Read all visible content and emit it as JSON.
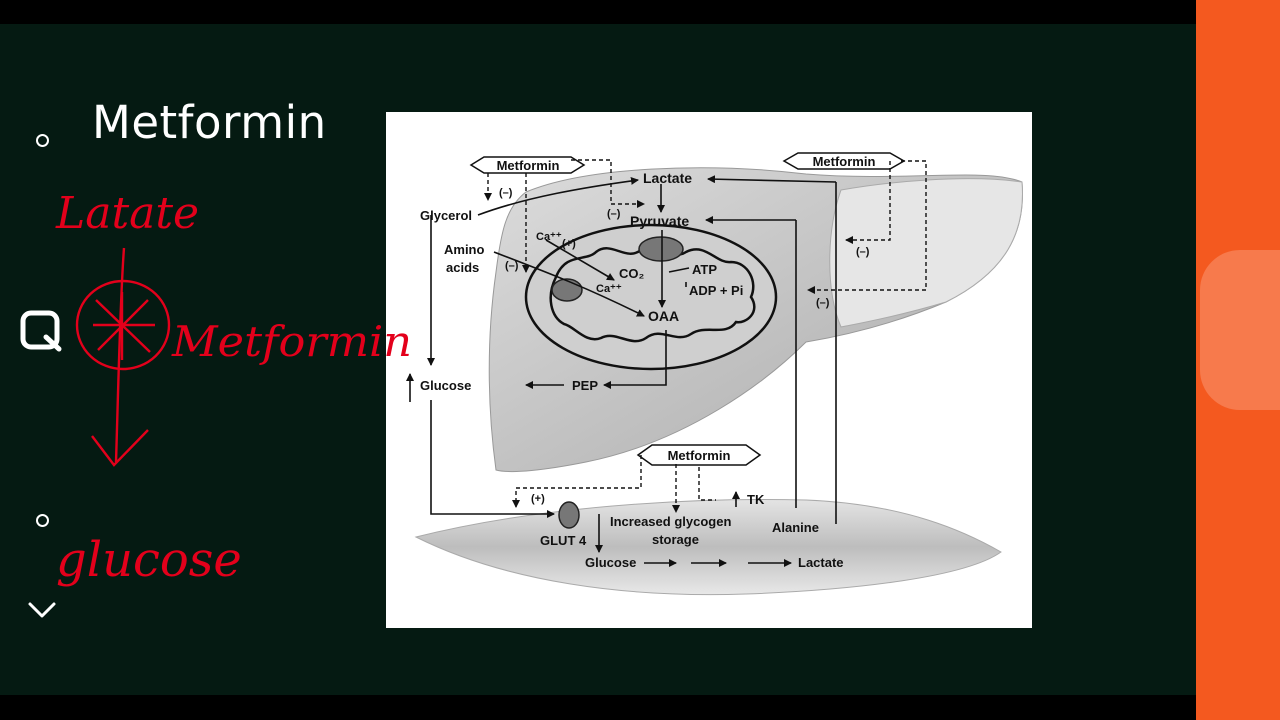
{
  "slide": {
    "title": "Metformin"
  },
  "handwriting": {
    "lactate": "Latate",
    "metformin": "Metformin",
    "glucose": "glucose"
  },
  "diagram": {
    "metformin_box_1": "Metformin",
    "metformin_box_2": "Metformin",
    "metformin_box_3": "Metformin",
    "lactate_top": "Lactate",
    "pyruvate": "Pyruvate",
    "glycerol": "Glycerol",
    "amino_acids_1": "Amino",
    "amino_acids_2": "acids",
    "ca_1": "Ca⁺⁺",
    "ca_2": "Ca⁺⁺",
    "plus_1": "(+)",
    "plus_2": "(+)",
    "minus_1": "(–)",
    "minus_2": "(–)",
    "minus_3": "(–)",
    "minus_4": "(–)",
    "minus_5": "(–)",
    "co2": "CO₂",
    "atp": "ATP",
    "adp": "ADP + Pi",
    "oaa": "OAA",
    "glucose_liver": "Glucose",
    "pep": "PEP",
    "glut4": "GLUT 4",
    "glycogen_1": "Increased glycogen",
    "glycogen_2": "storage",
    "tk": "TK",
    "alanine": "Alanine",
    "glucose_muscle": "Glucose",
    "lactate_muscle": "Lactate"
  },
  "sidebar": {
    "icons": [
      "circle-icon",
      "screenshot-icon",
      "circle-icon",
      "chevron-down-icon"
    ]
  },
  "colors": {
    "slide_bg": "#051a12",
    "sidebar": "#f4591f",
    "ink": "#e3001b"
  }
}
